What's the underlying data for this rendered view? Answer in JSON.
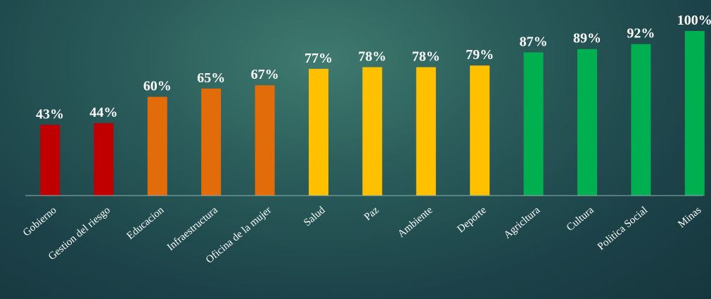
{
  "chart_data": {
    "type": "bar",
    "title": "",
    "xlabel": "",
    "ylabel": "",
    "ylim": [
      0,
      100
    ],
    "grid": false,
    "legend": "none",
    "value_suffix": "%",
    "categories": [
      "Gobierno",
      "Gestion del riesgo",
      "Educacion",
      "Infraestructura",
      "Oficina de la mujer",
      "Salud",
      "Paz",
      "Ambiente",
      "Deporte",
      "Agricltura",
      "Cultura",
      "Politica Social",
      "Minas"
    ],
    "values": [
      43,
      44,
      60,
      65,
      67,
      77,
      78,
      78,
      79,
      87,
      89,
      92,
      100
    ],
    "data_labels": [
      "43%",
      "44%",
      "60%",
      "65%",
      "67%",
      "77%",
      "78%",
      "78%",
      "79%",
      "87%",
      "89%",
      "92%",
      "100%"
    ],
    "bar_colors": [
      "#c00000",
      "#c00000",
      "#e36c0a",
      "#e36c0a",
      "#e36c0a",
      "#ffc000",
      "#ffc000",
      "#ffc000",
      "#ffc000",
      "#00b050",
      "#00b050",
      "#00b050",
      "#00b050"
    ],
    "colors": {
      "axis": "#8fb1ad",
      "labels": "#ffffff"
    }
  }
}
